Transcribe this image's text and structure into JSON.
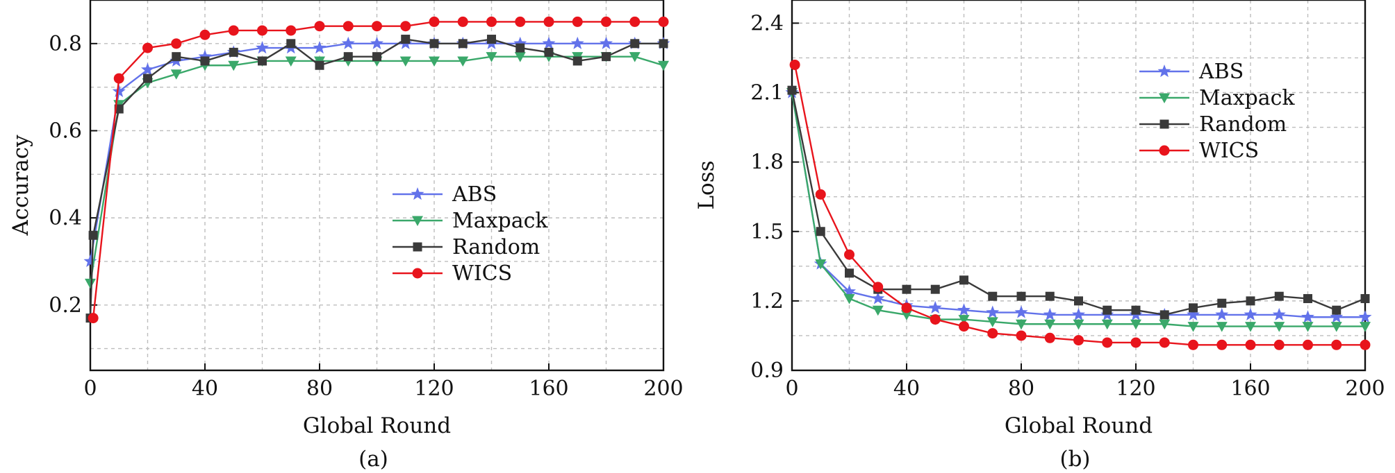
{
  "chart_data": [
    {
      "type": "line",
      "caption": "(a)",
      "xlabel": "Global Round",
      "ylabel": "Accuracy",
      "xlim": [
        0,
        200
      ],
      "ylim": [
        0.05,
        0.9
      ],
      "xticks": [
        "0",
        "40",
        "80",
        "120",
        "160",
        "200"
      ],
      "xtick_values": [
        0,
        40,
        80,
        120,
        160,
        200
      ],
      "yticks": [
        "0.2",
        "0.4",
        "0.6",
        "0.8"
      ],
      "ytick_values": [
        0.2,
        0.4,
        0.6,
        0.8
      ],
      "grid": true,
      "legend_position": "center-right",
      "series": [
        {
          "name": "ABS",
          "color": "#6272ea",
          "marker": "star",
          "x": [
            0,
            10,
            20,
            30,
            40,
            50,
            60,
            70,
            80,
            90,
            100,
            110,
            120,
            130,
            140,
            150,
            160,
            170,
            180,
            190,
            200
          ],
          "y": [
            0.3,
            0.69,
            0.74,
            0.76,
            0.77,
            0.78,
            0.79,
            0.79,
            0.79,
            0.8,
            0.8,
            0.8,
            0.8,
            0.8,
            0.8,
            0.8,
            0.8,
            0.8,
            0.8,
            0.8,
            0.8
          ]
        },
        {
          "name": "Maxpack",
          "color": "#3aa86a",
          "marker": "triangle-down",
          "x": [
            0,
            10,
            20,
            30,
            40,
            50,
            60,
            70,
            80,
            90,
            100,
            110,
            120,
            130,
            140,
            150,
            160,
            170,
            180,
            190,
            200
          ],
          "y": [
            0.25,
            0.66,
            0.71,
            0.73,
            0.75,
            0.75,
            0.76,
            0.76,
            0.76,
            0.76,
            0.76,
            0.76,
            0.76,
            0.76,
            0.77,
            0.77,
            0.77,
            0.77,
            0.77,
            0.77,
            0.75
          ]
        },
        {
          "name": "Random",
          "color": "#3a3a3a",
          "marker": "square",
          "x": [
            0,
            1,
            10,
            20,
            30,
            40,
            50,
            60,
            70,
            80,
            90,
            100,
            110,
            120,
            130,
            140,
            150,
            160,
            170,
            180,
            190,
            200
          ],
          "y": [
            0.17,
            0.36,
            0.65,
            0.72,
            0.77,
            0.76,
            0.78,
            0.76,
            0.8,
            0.75,
            0.77,
            0.77,
            0.81,
            0.8,
            0.8,
            0.81,
            0.79,
            0.78,
            0.76,
            0.77,
            0.8,
            0.8
          ]
        },
        {
          "name": "WICS",
          "color": "#e8141c",
          "marker": "circle",
          "x": [
            1,
            10,
            20,
            30,
            40,
            50,
            60,
            70,
            80,
            90,
            100,
            110,
            120,
            130,
            140,
            150,
            160,
            170,
            180,
            190,
            200
          ],
          "y": [
            0.17,
            0.72,
            0.79,
            0.8,
            0.82,
            0.83,
            0.83,
            0.83,
            0.84,
            0.84,
            0.84,
            0.84,
            0.85,
            0.85,
            0.85,
            0.85,
            0.85,
            0.85,
            0.85,
            0.85,
            0.85
          ]
        }
      ]
    },
    {
      "type": "line",
      "caption": "(b)",
      "xlabel": "Global Round",
      "ylabel": "Loss",
      "xlim": [
        0,
        200
      ],
      "ylim": [
        0.9,
        2.5
      ],
      "xticks": [
        "0",
        "40",
        "80",
        "120",
        "160",
        "200"
      ],
      "xtick_values": [
        0,
        40,
        80,
        120,
        160,
        200
      ],
      "yticks": [
        "0.9",
        "1.2",
        "1.5",
        "1.8",
        "2.1",
        "2.4"
      ],
      "ytick_values": [
        0.9,
        1.2,
        1.5,
        1.8,
        2.1,
        2.4
      ],
      "grid": true,
      "legend_position": "top-right",
      "series": [
        {
          "name": "ABS",
          "color": "#6272ea",
          "marker": "star",
          "x": [
            0,
            10,
            20,
            30,
            40,
            50,
            60,
            70,
            80,
            90,
            100,
            110,
            120,
            130,
            140,
            150,
            160,
            170,
            180,
            190,
            200
          ],
          "y": [
            2.1,
            1.36,
            1.24,
            1.21,
            1.18,
            1.17,
            1.16,
            1.15,
            1.15,
            1.14,
            1.14,
            1.14,
            1.14,
            1.14,
            1.14,
            1.14,
            1.14,
            1.14,
            1.13,
            1.13,
            1.13
          ]
        },
        {
          "name": "Maxpack",
          "color": "#3aa86a",
          "marker": "triangle-down",
          "x": [
            0,
            10,
            20,
            30,
            40,
            50,
            60,
            70,
            80,
            90,
            100,
            110,
            120,
            130,
            140,
            150,
            160,
            170,
            180,
            190,
            200
          ],
          "y": [
            2.1,
            1.36,
            1.21,
            1.16,
            1.14,
            1.12,
            1.12,
            1.11,
            1.1,
            1.1,
            1.1,
            1.1,
            1.1,
            1.1,
            1.09,
            1.09,
            1.09,
            1.09,
            1.09,
            1.09,
            1.09
          ]
        },
        {
          "name": "Random",
          "color": "#3a3a3a",
          "marker": "square",
          "x": [
            0,
            10,
            20,
            30,
            40,
            50,
            60,
            70,
            80,
            90,
            100,
            110,
            120,
            130,
            140,
            150,
            160,
            170,
            180,
            190,
            200
          ],
          "y": [
            2.11,
            1.5,
            1.32,
            1.25,
            1.25,
            1.25,
            1.29,
            1.22,
            1.22,
            1.22,
            1.2,
            1.16,
            1.16,
            1.14,
            1.17,
            1.19,
            1.2,
            1.22,
            1.21,
            1.16,
            1.21
          ]
        },
        {
          "name": "WICS",
          "color": "#e8141c",
          "marker": "circle",
          "x": [
            1,
            10,
            20,
            30,
            40,
            50,
            60,
            70,
            80,
            90,
            100,
            110,
            120,
            130,
            140,
            150,
            160,
            170,
            180,
            190,
            200
          ],
          "y": [
            2.22,
            1.66,
            1.4,
            1.26,
            1.17,
            1.12,
            1.09,
            1.06,
            1.05,
            1.04,
            1.03,
            1.02,
            1.02,
            1.02,
            1.01,
            1.01,
            1.01,
            1.01,
            1.01,
            1.01,
            1.01
          ]
        }
      ]
    }
  ]
}
